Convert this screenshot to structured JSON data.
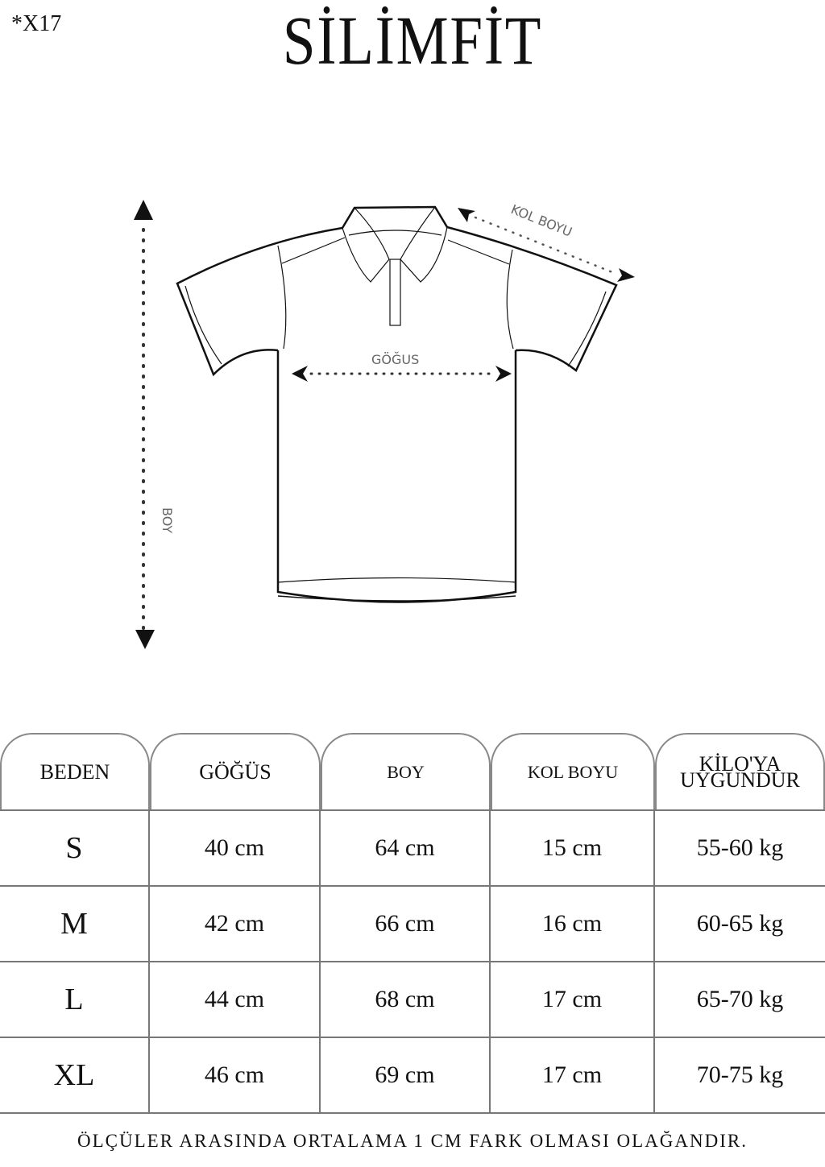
{
  "code": "*X17",
  "brand": "SİLİMFİT",
  "diagram": {
    "length_label": "BOY",
    "chest_label": "GÖĞUS",
    "sleeve_label": "KOL BOYU"
  },
  "table": {
    "headers": [
      "BEDEN",
      "GÖĞÜS",
      "BOY",
      "KOL BOYU",
      "KİLO'YA UYGUNDUR"
    ],
    "rows": [
      [
        "S",
        "40 cm",
        "64 cm",
        "15  cm",
        "55-60 kg"
      ],
      [
        "M",
        "42 cm",
        "66 cm",
        "16 cm",
        "60-65 kg"
      ],
      [
        "L",
        "44 cm",
        "68 cm",
        "17 cm",
        "65-70 kg"
      ],
      [
        "XL",
        "46 cm",
        "69 cm",
        "17 cm",
        "70-75 kg"
      ]
    ]
  },
  "footer": "ÖLÇÜLER ARASINDA ORTALAMA 1 CM FARK OLMASI OLAĞANDIR."
}
